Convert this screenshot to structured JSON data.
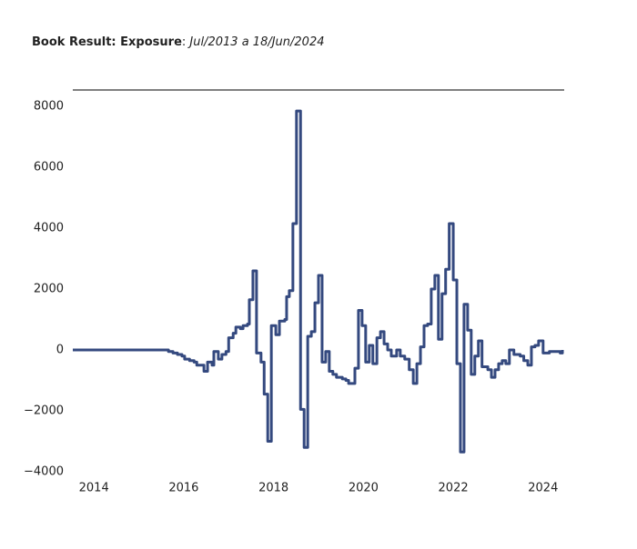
{
  "chart_data": {
    "type": "line",
    "title": "Book Result: Exposure",
    "title_separator": ":",
    "subtitle": "Jul/2013 a 18/Jun/2024",
    "line_shape": "hv",
    "xlim": [
      2013.53,
      2024.47
    ],
    "xticks": [
      2014,
      2016,
      2018,
      2020,
      2022,
      2024
    ],
    "ylim": [
      -4000,
      8540
    ],
    "yticks": [
      {
        "value": -4000,
        "label": "−4000"
      },
      {
        "value": -2000,
        "label": "−2000"
      },
      0,
      2000,
      4000,
      6000,
      8000
    ],
    "grid": false,
    "x": [
      2013.53,
      2015.56,
      2015.66,
      2015.76,
      2015.86,
      2015.96,
      2016.02,
      2016.13,
      2016.23,
      2016.29,
      2016.41,
      2016.45,
      2016.53,
      2016.63,
      2016.67,
      2016.77,
      2016.85,
      2016.94,
      2017.0,
      2017.1,
      2017.16,
      2017.26,
      2017.32,
      2017.42,
      2017.46,
      2017.54,
      2017.62,
      2017.72,
      2017.79,
      2017.87,
      2017.95,
      2018.05,
      2018.13,
      2018.25,
      2018.29,
      2018.35,
      2018.43,
      2018.51,
      2018.6,
      2018.68,
      2018.76,
      2018.84,
      2018.92,
      2019.0,
      2019.08,
      2019.16,
      2019.24,
      2019.32,
      2019.4,
      2019.53,
      2019.61,
      2019.67,
      2019.81,
      2019.89,
      2019.97,
      2020.05,
      2020.13,
      2020.21,
      2020.3,
      2020.38,
      2020.46,
      2020.54,
      2020.62,
      2020.74,
      2020.82,
      2020.92,
      2021.02,
      2021.11,
      2021.19,
      2021.27,
      2021.35,
      2021.43,
      2021.51,
      2021.59,
      2021.67,
      2021.75,
      2021.83,
      2021.91,
      2022.0,
      2022.08,
      2022.16,
      2022.24,
      2022.32,
      2022.4,
      2022.48,
      2022.56,
      2022.64,
      2022.77,
      2022.85,
      2022.93,
      2023.01,
      2023.09,
      2023.17,
      2023.25,
      2023.35,
      2023.49,
      2023.57,
      2023.66,
      2023.74,
      2023.82,
      2023.9,
      2024.0,
      2024.14,
      2024.3,
      2024.38,
      2024.43
    ],
    "series": [
      {
        "name": "Exposure",
        "color": "#34497f",
        "values": [
          0,
          0,
          -50,
          -100,
          -150,
          -200,
          -300,
          -350,
          -400,
          -500,
          -500,
          -700,
          -400,
          -500,
          -50,
          -300,
          -150,
          -50,
          400,
          550,
          750,
          700,
          800,
          850,
          1650,
          2600,
          -100,
          -400,
          -1450,
          -3000,
          800,
          500,
          950,
          1000,
          1750,
          1950,
          4150,
          7850,
          -1950,
          -3200,
          450,
          600,
          1550,
          2450,
          -400,
          -50,
          -700,
          -800,
          -900,
          -950,
          -1000,
          -1100,
          -600,
          1300,
          800,
          -400,
          150,
          -450,
          400,
          600,
          200,
          0,
          -200,
          0,
          -200,
          -300,
          -650,
          -1100,
          -450,
          100,
          800,
          850,
          2000,
          2450,
          350,
          1850,
          2650,
          4150,
          2300,
          -450,
          -3350,
          1500,
          650,
          -800,
          -200,
          300,
          -550,
          -650,
          -900,
          -650,
          -450,
          -350,
          -450,
          0,
          -150,
          -200,
          -350,
          -500,
          100,
          150,
          300,
          -100,
          -50,
          -50,
          -100,
          0
        ]
      }
    ]
  }
}
